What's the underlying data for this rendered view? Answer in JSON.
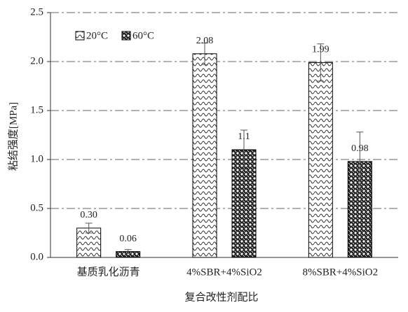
{
  "chart_data": {
    "type": "bar",
    "y_label": "粘结强度[MPa]",
    "x_label": "复合改性剂配比",
    "categories": [
      "基质乳化沥青",
      "4%SBR+4%SiO2",
      "8%SBR+4%SiO2"
    ],
    "series": [
      {
        "name": "20°C",
        "color": "#000000",
        "pattern": "circles",
        "values": [
          0.3,
          2.08,
          1.99
        ],
        "value_labels": [
          "0.30",
          "2.08",
          "1.99"
        ],
        "errors": [
          0.05,
          0.11,
          0.19
        ]
      },
      {
        "name": "60°C",
        "color": "#000000",
        "pattern": "checker",
        "values": [
          0.06,
          1.1,
          0.98
        ],
        "value_labels": [
          "0.06",
          "1.1",
          "0.98"
        ],
        "errors": [
          0.02,
          0.2,
          0.3
        ]
      }
    ],
    "ylim": [
      0,
      2.5
    ],
    "yticks": [
      {
        "value": 0,
        "label": "0.0"
      },
      0.5,
      {
        "value": 1,
        "label": "1.0"
      },
      1.5,
      {
        "value": 2,
        "label": "2.0"
      },
      2.5
    ],
    "grid": true,
    "legend": "top-left"
  }
}
